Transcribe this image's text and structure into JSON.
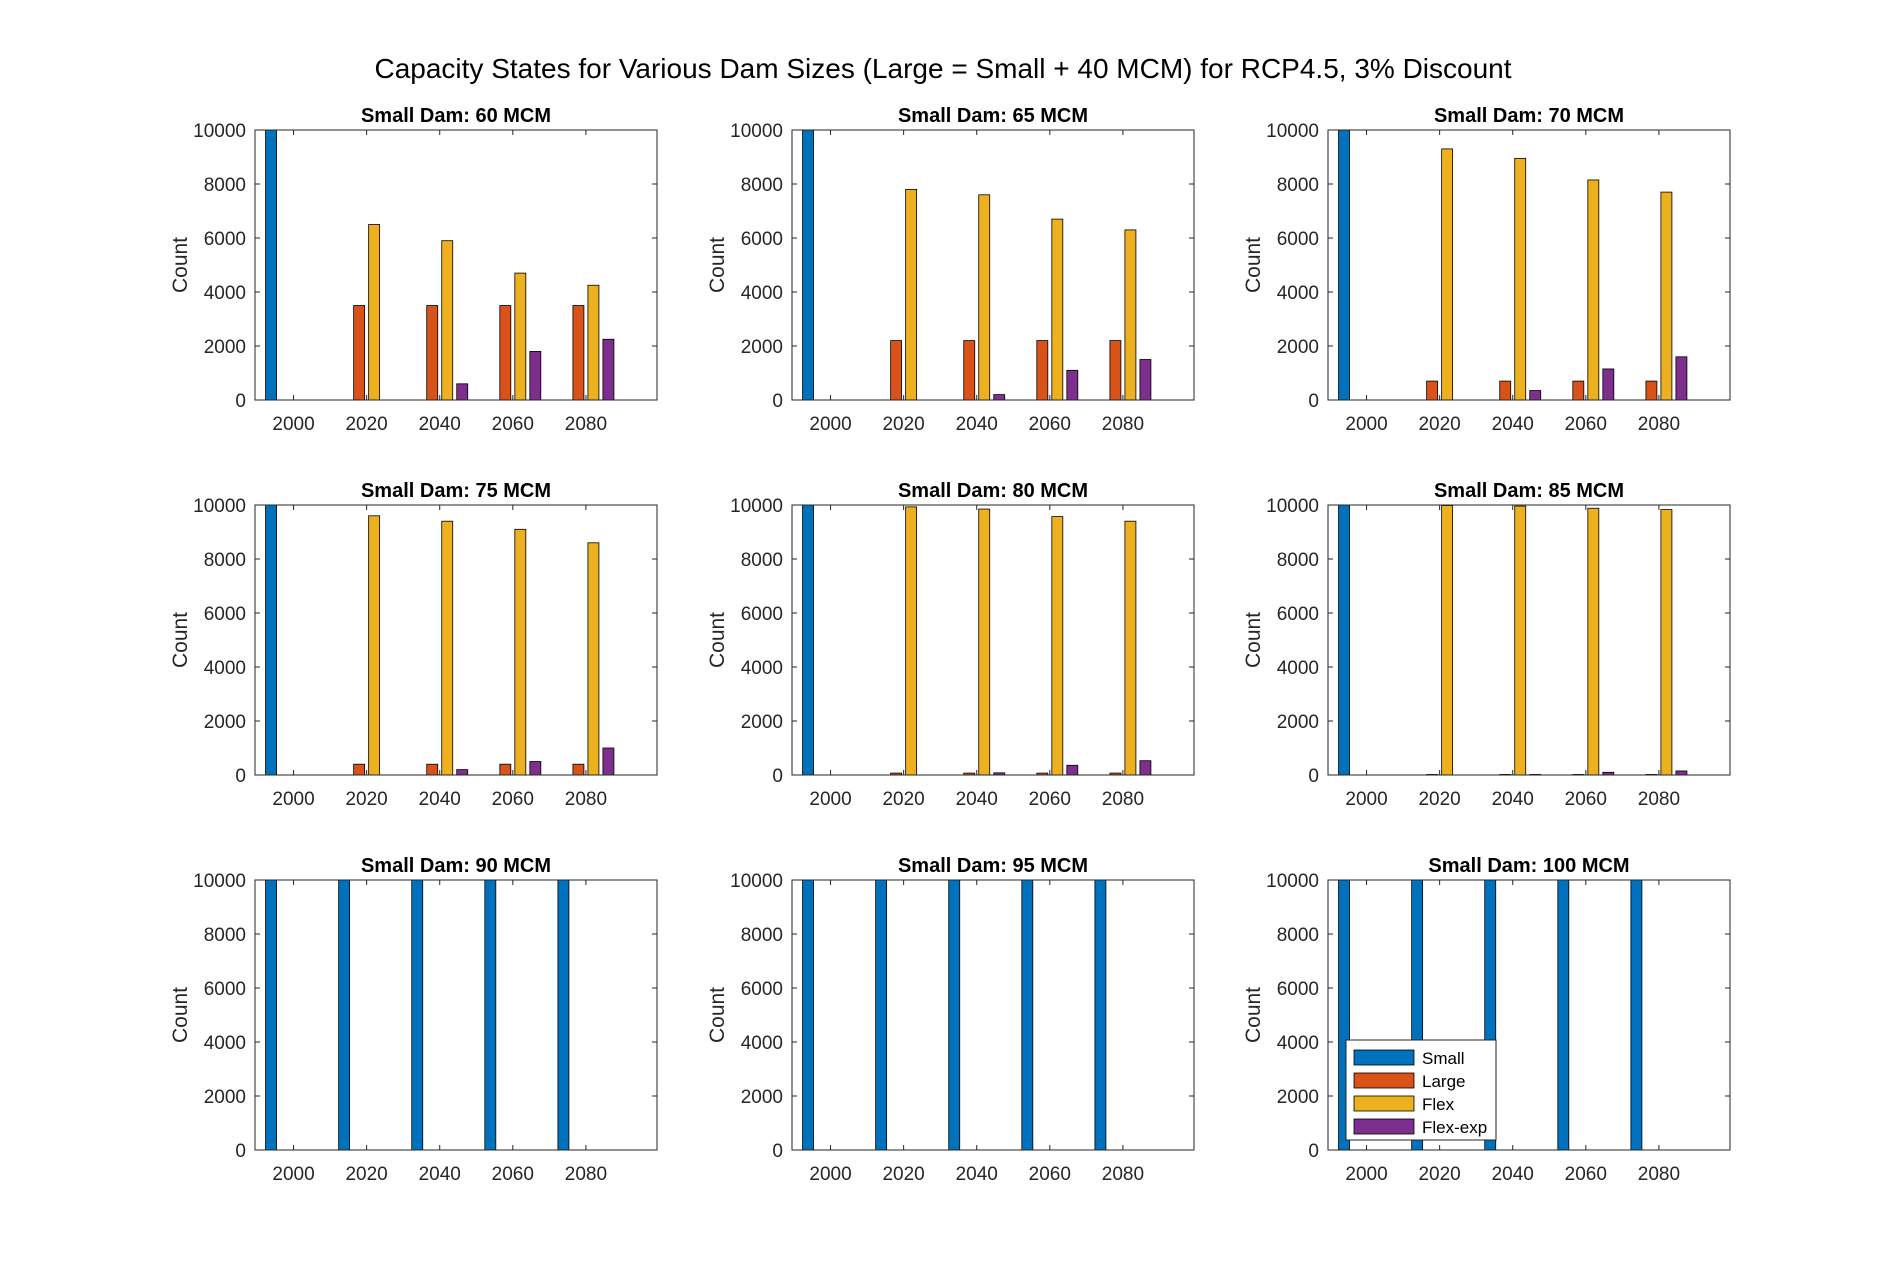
{
  "figure_title": "Capacity States for Various Dam Sizes (Large = Small + 40 MCM) for RCP4.5, 3% Discount",
  "series_colors": {
    "Small": "#0072BD",
    "Large": "#D95319",
    "Flex": "#EDB120",
    "Flex-exp": "#7E2F8E"
  },
  "legend": {
    "placement": "inside-lower-left of last panel",
    "entries": [
      "Small",
      "Large",
      "Flex",
      "Flex-exp"
    ]
  },
  "chart_data": [
    {
      "type": "bar",
      "title": "Small Dam: 60 MCM",
      "ylabel": "Count",
      "xlabel": "",
      "categories": [
        "2000",
        "2020",
        "2040",
        "2060",
        "2080"
      ],
      "ylim": [
        0,
        10000
      ],
      "yticks": [
        "0",
        "2000",
        "4000",
        "6000",
        "8000",
        "10000"
      ],
      "series": [
        {
          "name": "Small",
          "values": [
            10000,
            0,
            0,
            0,
            0
          ]
        },
        {
          "name": "Large",
          "values": [
            0,
            3500,
            3500,
            3500,
            3500
          ]
        },
        {
          "name": "Flex",
          "values": [
            0,
            6500,
            5900,
            4700,
            4250
          ]
        },
        {
          "name": "Flex-exp",
          "values": [
            0,
            0,
            600,
            1800,
            2250
          ]
        }
      ]
    },
    {
      "type": "bar",
      "title": "Small Dam: 65 MCM",
      "ylabel": "Count",
      "xlabel": "",
      "categories": [
        "2000",
        "2020",
        "2040",
        "2060",
        "2080"
      ],
      "ylim": [
        0,
        10000
      ],
      "yticks": [
        "0",
        "2000",
        "4000",
        "6000",
        "8000",
        "10000"
      ],
      "series": [
        {
          "name": "Small",
          "values": [
            10000,
            0,
            0,
            0,
            0
          ]
        },
        {
          "name": "Large",
          "values": [
            0,
            2200,
            2200,
            2200,
            2200
          ]
        },
        {
          "name": "Flex",
          "values": [
            0,
            7800,
            7600,
            6700,
            6300
          ]
        },
        {
          "name": "Flex-exp",
          "values": [
            0,
            0,
            200,
            1100,
            1500
          ]
        }
      ]
    },
    {
      "type": "bar",
      "title": "Small Dam: 70 MCM",
      "ylabel": "Count",
      "xlabel": "",
      "categories": [
        "2000",
        "2020",
        "2040",
        "2060",
        "2080"
      ],
      "ylim": [
        0,
        10000
      ],
      "yticks": [
        "0",
        "2000",
        "4000",
        "6000",
        "8000",
        "10000"
      ],
      "series": [
        {
          "name": "Small",
          "values": [
            10000,
            0,
            0,
            0,
            0
          ]
        },
        {
          "name": "Large",
          "values": [
            0,
            700,
            700,
            700,
            700
          ]
        },
        {
          "name": "Flex",
          "values": [
            0,
            9300,
            8950,
            8150,
            7700
          ]
        },
        {
          "name": "Flex-exp",
          "values": [
            0,
            0,
            350,
            1150,
            1600
          ]
        }
      ]
    },
    {
      "type": "bar",
      "title": "Small Dam: 75 MCM",
      "ylabel": "Count",
      "xlabel": "",
      "categories": [
        "2000",
        "2020",
        "2040",
        "2060",
        "2080"
      ],
      "ylim": [
        0,
        10000
      ],
      "yticks": [
        "0",
        "2000",
        "4000",
        "6000",
        "8000",
        "10000"
      ],
      "series": [
        {
          "name": "Small",
          "values": [
            10000,
            0,
            0,
            0,
            0
          ]
        },
        {
          "name": "Large",
          "values": [
            0,
            400,
            400,
            400,
            400
          ]
        },
        {
          "name": "Flex",
          "values": [
            0,
            9600,
            9400,
            9100,
            8600
          ]
        },
        {
          "name": "Flex-exp",
          "values": [
            0,
            0,
            200,
            500,
            1000
          ]
        }
      ]
    },
    {
      "type": "bar",
      "title": "Small Dam: 80 MCM",
      "ylabel": "Count",
      "xlabel": "",
      "categories": [
        "2000",
        "2020",
        "2040",
        "2060",
        "2080"
      ],
      "ylim": [
        0,
        10000
      ],
      "yticks": [
        "0",
        "2000",
        "4000",
        "6000",
        "8000",
        "10000"
      ],
      "series": [
        {
          "name": "Small",
          "values": [
            10000,
            0,
            0,
            0,
            0
          ]
        },
        {
          "name": "Large",
          "values": [
            0,
            70,
            70,
            70,
            70
          ]
        },
        {
          "name": "Flex",
          "values": [
            0,
            9930,
            9850,
            9570,
            9400
          ]
        },
        {
          "name": "Flex-exp",
          "values": [
            0,
            0,
            80,
            360,
            530
          ]
        }
      ]
    },
    {
      "type": "bar",
      "title": "Small Dam: 85 MCM",
      "ylabel": "Count",
      "xlabel": "",
      "categories": [
        "2000",
        "2020",
        "2040",
        "2060",
        "2080"
      ],
      "ylim": [
        0,
        10000
      ],
      "yticks": [
        "0",
        "2000",
        "4000",
        "6000",
        "8000",
        "10000"
      ],
      "series": [
        {
          "name": "Small",
          "values": [
            10000,
            0,
            0,
            0,
            0
          ]
        },
        {
          "name": "Large",
          "values": [
            0,
            20,
            20,
            20,
            20
          ]
        },
        {
          "name": "Flex",
          "values": [
            0,
            9980,
            9960,
            9880,
            9830
          ]
        },
        {
          "name": "Flex-exp",
          "values": [
            0,
            0,
            20,
            100,
            150
          ]
        }
      ]
    },
    {
      "type": "bar",
      "title": "Small Dam: 90 MCM",
      "ylabel": "Count",
      "xlabel": "",
      "categories": [
        "2000",
        "2020",
        "2040",
        "2060",
        "2080"
      ],
      "ylim": [
        0,
        10000
      ],
      "yticks": [
        "0",
        "2000",
        "4000",
        "6000",
        "8000",
        "10000"
      ],
      "series": [
        {
          "name": "Small",
          "values": [
            10000,
            10000,
            10000,
            10000,
            10000
          ]
        },
        {
          "name": "Large",
          "values": [
            0,
            0,
            0,
            0,
            0
          ]
        },
        {
          "name": "Flex",
          "values": [
            0,
            0,
            0,
            0,
            0
          ]
        },
        {
          "name": "Flex-exp",
          "values": [
            0,
            0,
            0,
            0,
            0
          ]
        }
      ]
    },
    {
      "type": "bar",
      "title": "Small Dam: 95 MCM",
      "ylabel": "Count",
      "xlabel": "",
      "categories": [
        "2000",
        "2020",
        "2040",
        "2060",
        "2080"
      ],
      "ylim": [
        0,
        10000
      ],
      "yticks": [
        "0",
        "2000",
        "4000",
        "6000",
        "8000",
        "10000"
      ],
      "series": [
        {
          "name": "Small",
          "values": [
            10000,
            10000,
            10000,
            10000,
            10000
          ]
        },
        {
          "name": "Large",
          "values": [
            0,
            0,
            0,
            0,
            0
          ]
        },
        {
          "name": "Flex",
          "values": [
            0,
            0,
            0,
            0,
            0
          ]
        },
        {
          "name": "Flex-exp",
          "values": [
            0,
            0,
            0,
            0,
            0
          ]
        }
      ]
    },
    {
      "type": "bar",
      "title": "Small Dam: 100 MCM",
      "ylabel": "Count",
      "xlabel": "",
      "categories": [
        "2000",
        "2020",
        "2040",
        "2060",
        "2080"
      ],
      "ylim": [
        0,
        10000
      ],
      "yticks": [
        "0",
        "2000",
        "4000",
        "6000",
        "8000",
        "10000"
      ],
      "series": [
        {
          "name": "Small",
          "values": [
            10000,
            10000,
            10000,
            10000,
            10000
          ]
        },
        {
          "name": "Large",
          "values": [
            0,
            0,
            0,
            0,
            0
          ]
        },
        {
          "name": "Flex",
          "values": [
            0,
            0,
            0,
            0,
            0
          ]
        },
        {
          "name": "Flex-exp",
          "values": [
            0,
            0,
            0,
            0,
            0
          ]
        }
      ],
      "has_legend": true
    }
  ]
}
